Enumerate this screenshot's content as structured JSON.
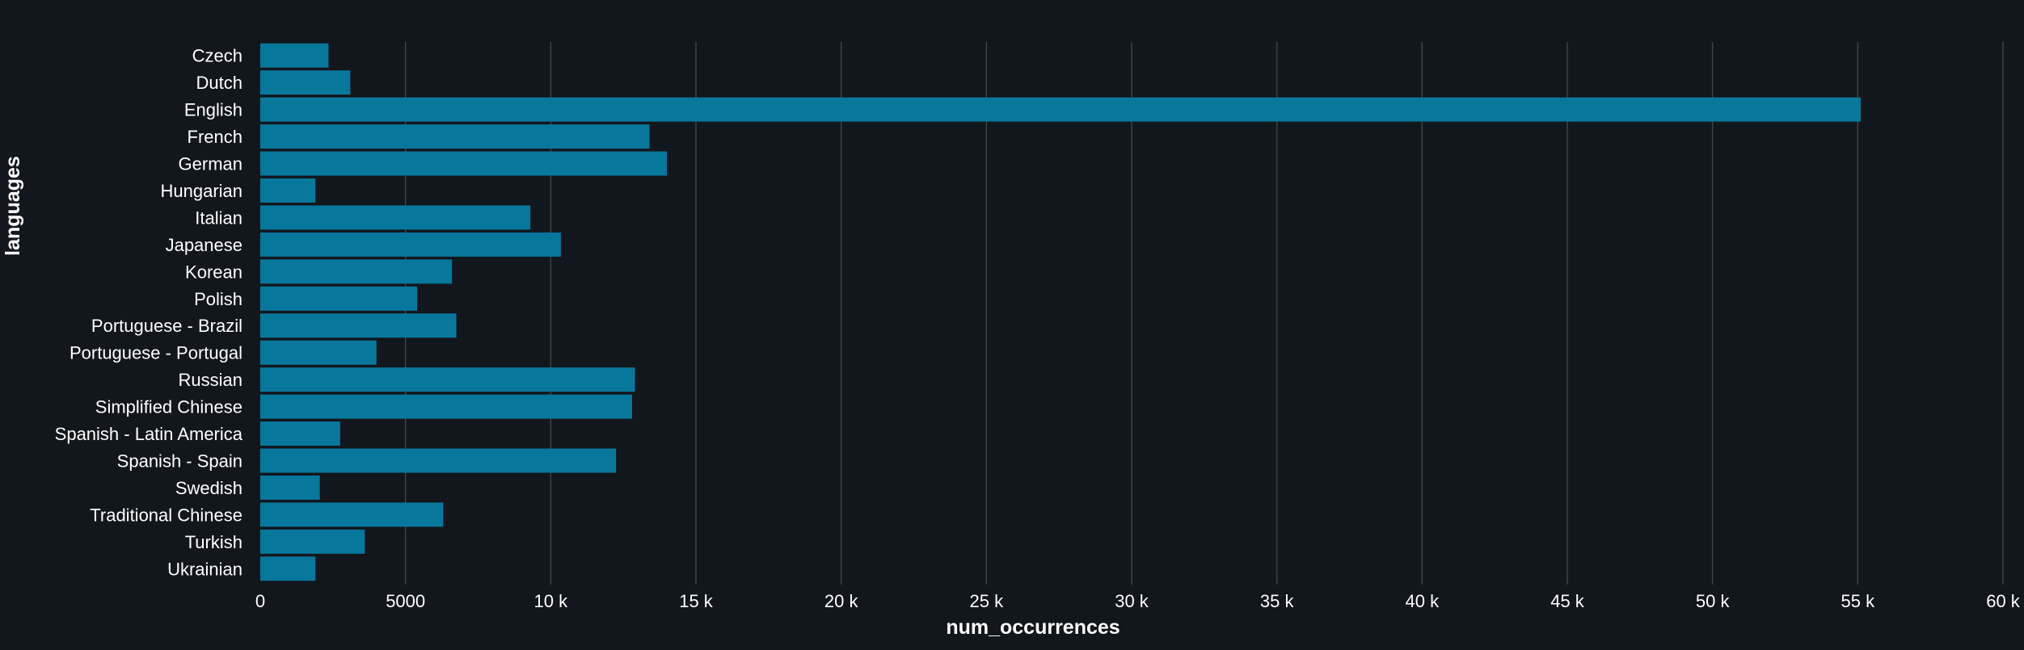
{
  "chart_data": {
    "type": "bar",
    "orientation": "horizontal",
    "xlabel": "num_occurrences",
    "ylabel": "languages",
    "xlim": [
      0,
      60000
    ],
    "grid": "vertical",
    "categories": [
      "Czech",
      "Dutch",
      "English",
      "French",
      "German",
      "Hungarian",
      "Italian",
      "Japanese",
      "Korean",
      "Polish",
      "Portuguese - Brazil",
      "Portuguese - Portugal",
      "Russian",
      "Simplified Chinese",
      "Spanish - Latin America",
      "Spanish - Spain",
      "Swedish",
      "Traditional Chinese",
      "Turkish",
      "Ukrainian"
    ],
    "values": [
      2350,
      3100,
      55100,
      13400,
      14000,
      1900,
      9300,
      10350,
      6600,
      5400,
      6750,
      4000,
      12900,
      12800,
      2750,
      12250,
      2050,
      6300,
      3600,
      1900
    ],
    "xticks": [
      {
        "value": 0,
        "label": "0"
      },
      {
        "value": 5000,
        "label": "5000"
      },
      {
        "value": 10000,
        "label": "10 k"
      },
      {
        "value": 15000,
        "label": "15 k"
      },
      {
        "value": 20000,
        "label": "20 k"
      },
      {
        "value": 25000,
        "label": "25 k"
      },
      {
        "value": 30000,
        "label": "30 k"
      },
      {
        "value": 35000,
        "label": "35 k"
      },
      {
        "value": 40000,
        "label": "40 k"
      },
      {
        "value": 45000,
        "label": "45 k"
      },
      {
        "value": 50000,
        "label": "50 k"
      },
      {
        "value": 55000,
        "label": "55 k"
      },
      {
        "value": 60000,
        "label": "60 k"
      }
    ],
    "colors": {
      "bar": "#08779c",
      "background": "#12161d",
      "grid": "#3c4440"
    }
  }
}
